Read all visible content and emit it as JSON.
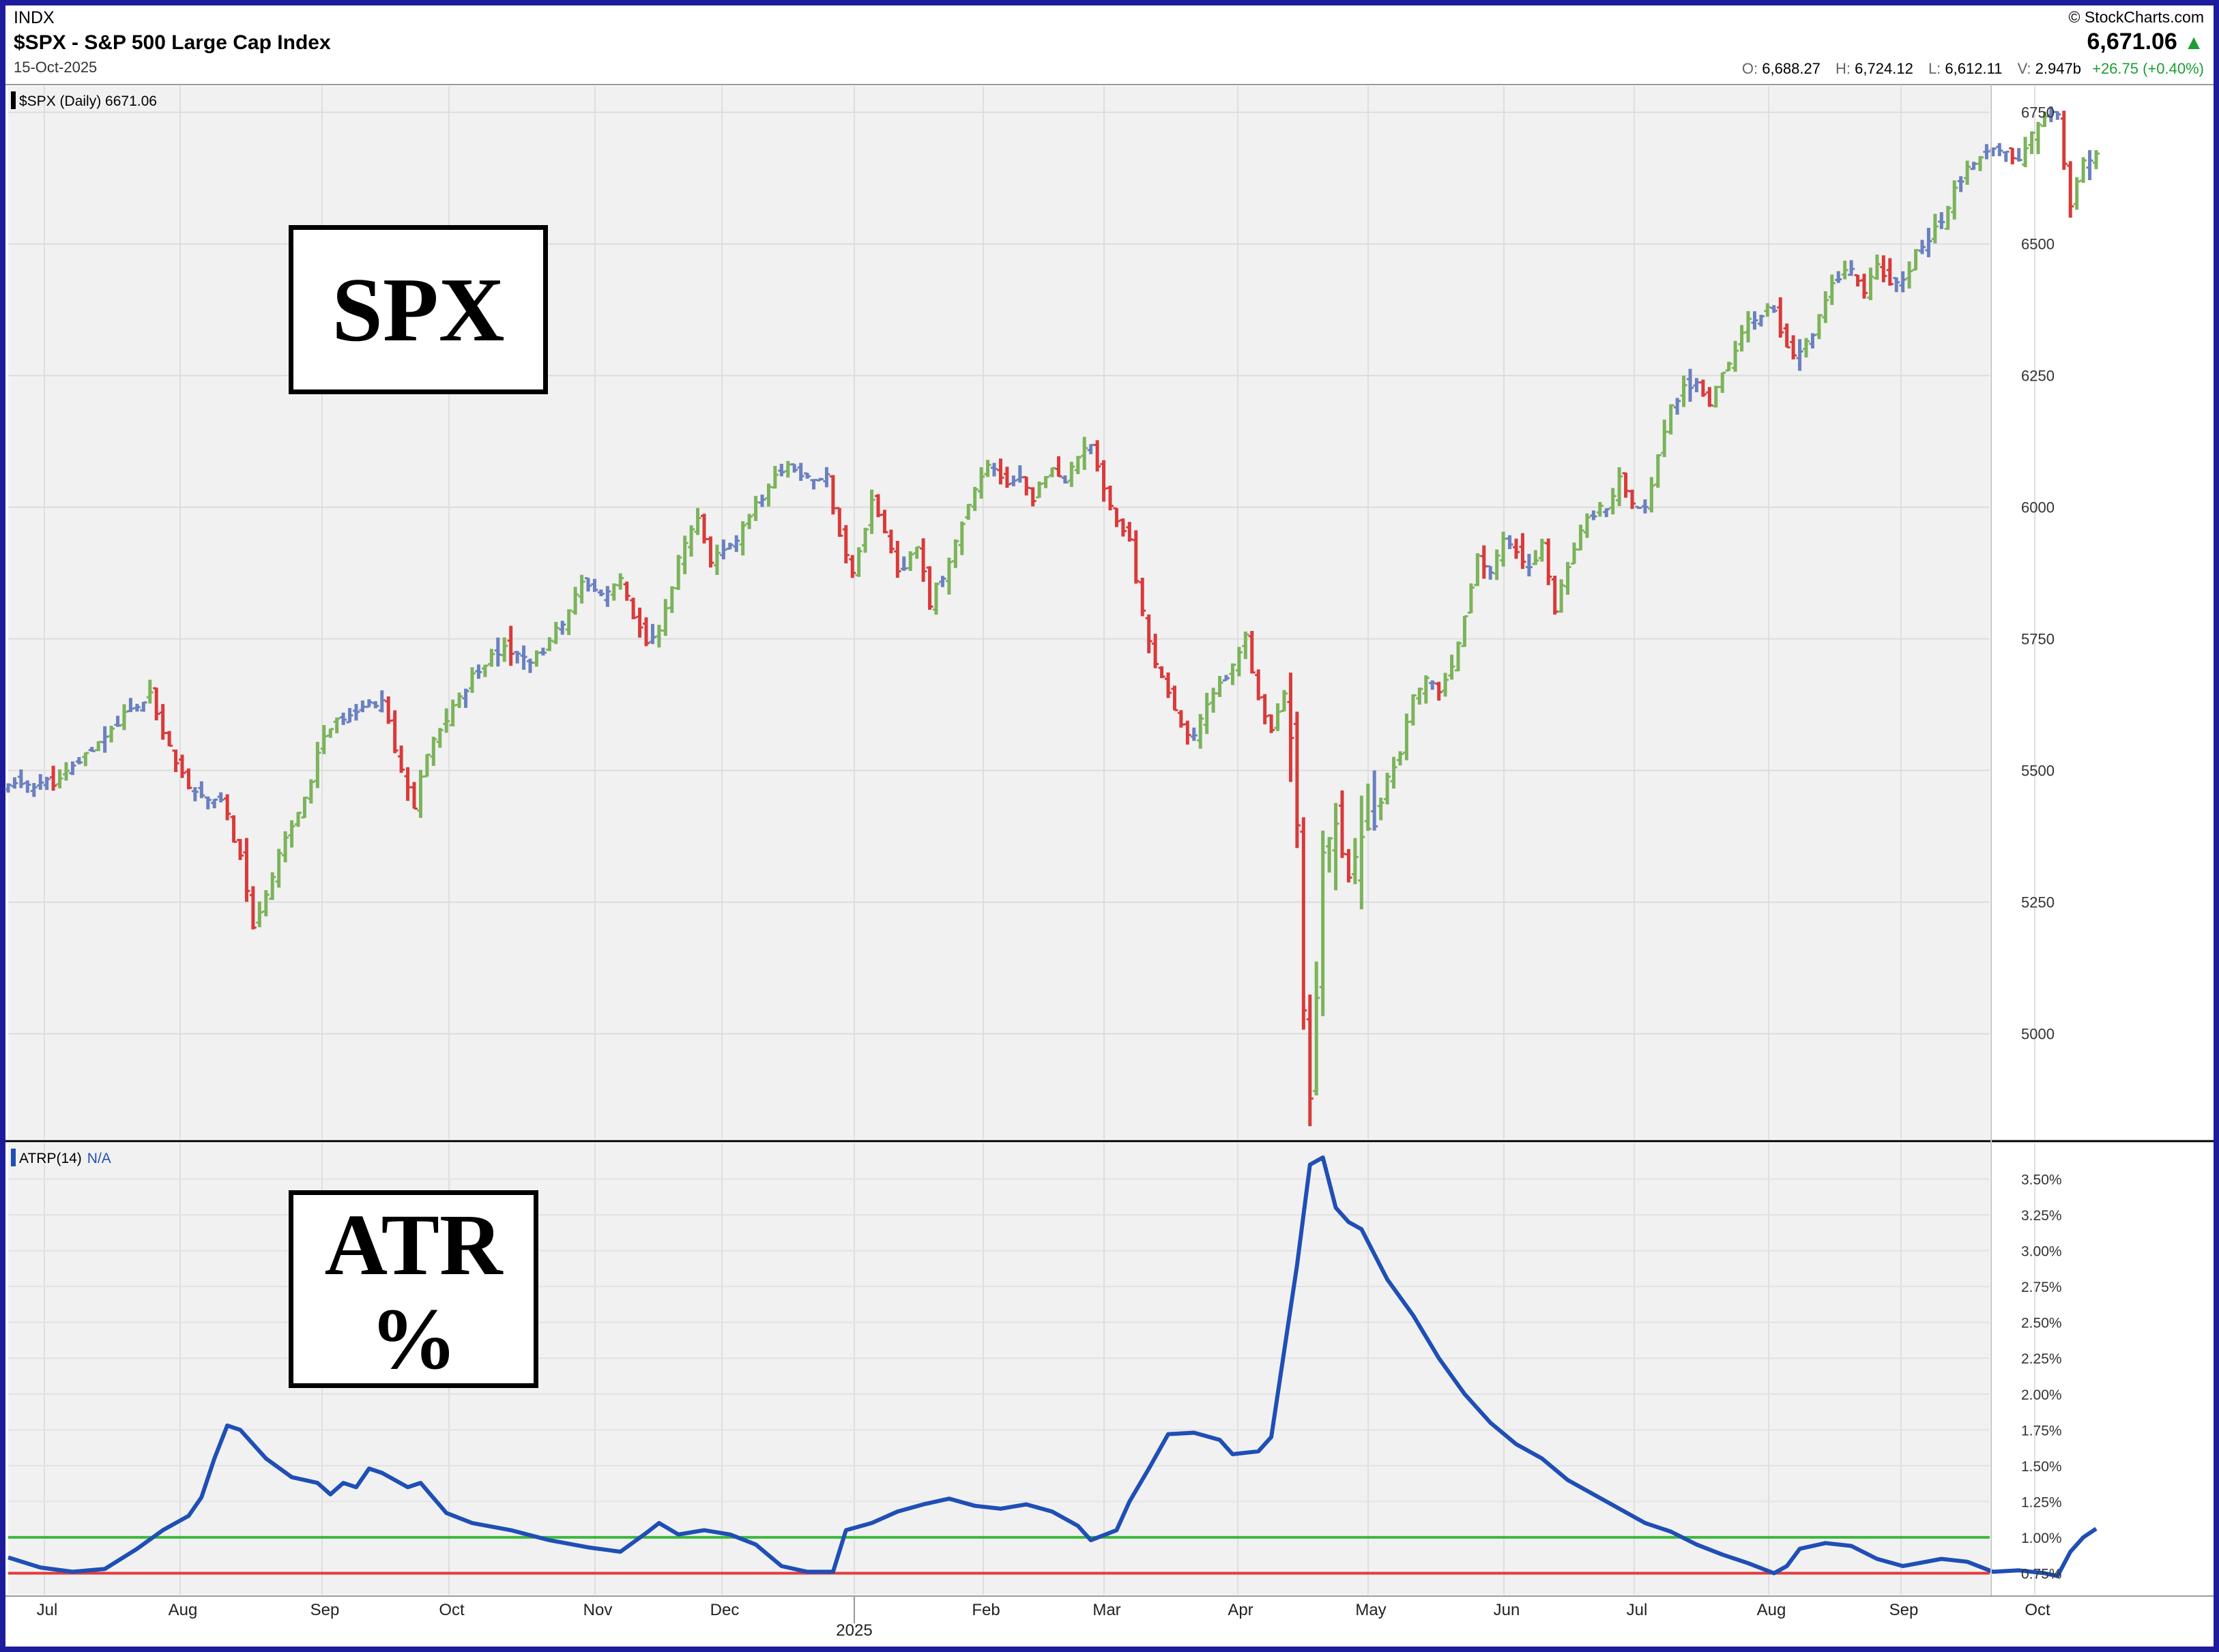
{
  "header": {
    "exchange": "INDX",
    "title": "$SPX - S&P 500 Large Cap Index",
    "date": "15-Oct-2025",
    "copyright": "© StockCharts.com",
    "last_price": "6,671.06",
    "up_arrow": "▲",
    "ohlcv": {
      "open_label": "O:",
      "open": "6,688.27",
      "high_label": "H:",
      "high": "6,724.12",
      "low_label": "L:",
      "low": "6,612.11",
      "vol_label": "V:",
      "vol": "2.947b",
      "change": "+26.75 (+0.40%)"
    }
  },
  "colors": {
    "frame": "#1c1c9c",
    "up": "#7cb35b",
    "down": "#d93a3a",
    "neutral": "#6a80bf",
    "atr_line": "#1f4fb5",
    "level_high": "#3cb93c",
    "level_low": "#e33b3b",
    "plot_bg": "#f1f1f1"
  },
  "overlays": {
    "price_box": "SPX",
    "atr_box_line1": "ATR",
    "atr_box_line2": "%"
  },
  "chart_data": [
    {
      "type": "ohlc",
      "panel": "price",
      "legend": "$SPX (Daily) 6671.06",
      "ylim": [
        4800,
        6800
      ],
      "y_ticks": [
        "5000",
        "5250",
        "5500",
        "5750",
        "6000",
        "6250",
        "6500",
        "6750"
      ],
      "x_ticks": [
        "Jul",
        "Aug",
        "Sep",
        "Oct",
        "Nov",
        "Dec",
        "2025",
        "Feb",
        "Mar",
        "Apr",
        "May",
        "Jun",
        "Jul",
        "Aug",
        "Sep",
        "Oct"
      ],
      "close_path": [
        [
          0,
          5470
        ],
        [
          8,
          5480
        ],
        [
          14,
          5555
        ],
        [
          18,
          5605
        ],
        [
          22,
          5640
        ],
        [
          25,
          5550
        ],
        [
          28,
          5460
        ],
        [
          31,
          5440
        ],
        [
          33,
          5450
        ],
        [
          36,
          5330
        ],
        [
          38,
          5210
        ],
        [
          40,
          5260
        ],
        [
          42,
          5350
        ],
        [
          46,
          5440
        ],
        [
          49,
          5570
        ],
        [
          54,
          5620
        ],
        [
          58,
          5635
        ],
        [
          61,
          5500
        ],
        [
          63,
          5430
        ],
        [
          65,
          5530
        ],
        [
          69,
          5620
        ],
        [
          73,
          5695
        ],
        [
          77,
          5740
        ],
        [
          80,
          5710
        ],
        [
          83,
          5720
        ],
        [
          86,
          5785
        ],
        [
          89,
          5850
        ],
        [
          92,
          5835
        ],
        [
          95,
          5860
        ],
        [
          97,
          5790
        ],
        [
          99,
          5740
        ],
        [
          101,
          5760
        ],
        [
          104,
          5900
        ],
        [
          107,
          5975
        ],
        [
          109,
          5900
        ],
        [
          112,
          5920
        ],
        [
          115,
          5985
        ],
        [
          118,
          6040
        ],
        [
          121,
          6085
        ],
        [
          124,
          6050
        ],
        [
          127,
          6060
        ],
        [
          129,
          5950
        ],
        [
          131,
          5875
        ],
        [
          134,
          6010
        ],
        [
          136,
          5960
        ],
        [
          138,
          5870
        ],
        [
          141,
          5920
        ],
        [
          143,
          5820
        ],
        [
          146,
          5900
        ],
        [
          149,
          6000
        ],
        [
          152,
          6080
        ],
        [
          155,
          6040
        ],
        [
          157,
          6060
        ],
        [
          159,
          6020
        ],
        [
          162,
          6075
        ],
        [
          164,
          6050
        ],
        [
          166,
          6090
        ],
        [
          168,
          6120
        ],
        [
          170,
          6040
        ],
        [
          172,
          5980
        ],
        [
          174,
          5930
        ],
        [
          176,
          5800
        ],
        [
          178,
          5700
        ],
        [
          180,
          5640
        ],
        [
          182,
          5590
        ],
        [
          184,
          5560
        ],
        [
          186,
          5620
        ],
        [
          188,
          5660
        ],
        [
          190,
          5700
        ],
        [
          192,
          5760
        ],
        [
          194,
          5630
        ],
        [
          196,
          5580
        ],
        [
          198,
          5650
        ],
        [
          199,
          5560
        ],
        [
          200,
          5400
        ],
        [
          201,
          5050
        ],
        [
          202,
          4870
        ],
        [
          203,
          5060
        ],
        [
          204,
          5350
        ],
        [
          206,
          5400
        ],
        [
          208,
          5290
        ],
        [
          210,
          5370
        ],
        [
          212,
          5400
        ],
        [
          214,
          5480
        ],
        [
          216,
          5530
        ],
        [
          218,
          5650
        ],
        [
          220,
          5670
        ],
        [
          222,
          5650
        ],
        [
          224,
          5690
        ],
        [
          226,
          5800
        ],
        [
          228,
          5900
        ],
        [
          230,
          5880
        ],
        [
          232,
          5940
        ],
        [
          234,
          5910
        ],
        [
          236,
          5880
        ],
        [
          238,
          5930
        ],
        [
          240,
          5800
        ],
        [
          242,
          5890
        ],
        [
          244,
          5960
        ],
        [
          246,
          5990
        ],
        [
          248,
          6000
        ],
        [
          250,
          6050
        ],
        [
          252,
          6000
        ],
        [
          254,
          6000
        ],
        [
          256,
          6100
        ],
        [
          258,
          6190
        ],
        [
          260,
          6230
        ],
        [
          262,
          6240
        ],
        [
          264,
          6200
        ],
        [
          266,
          6260
        ],
        [
          268,
          6300
        ],
        [
          270,
          6350
        ],
        [
          272,
          6370
        ],
        [
          274,
          6380
        ],
        [
          276,
          6300
        ],
        [
          278,
          6290
        ],
        [
          280,
          6330
        ],
        [
          282,
          6400
        ],
        [
          284,
          6440
        ],
        [
          286,
          6450
        ],
        [
          288,
          6400
        ],
        [
          290,
          6460
        ],
        [
          292,
          6420
        ],
        [
          294,
          6430
        ],
        [
          296,
          6480
        ],
        [
          298,
          6510
        ],
        [
          300,
          6550
        ],
        [
          302,
          6600
        ],
        [
          304,
          6640
        ],
        [
          306,
          6660
        ],
        [
          308,
          6690
        ],
        [
          310,
          6680
        ],
        [
          312,
          6660
        ],
        [
          314,
          6720
        ],
        [
          316,
          6750
        ],
        [
          318,
          6740
        ],
        [
          320,
          6570
        ],
        [
          322,
          6650
        ],
        [
          324,
          6671
        ]
      ]
    },
    {
      "type": "line",
      "panel": "indicator",
      "legend_name": "ATRP(14)",
      "legend_value": "N/A",
      "ylim": [
        0.6,
        3.75
      ],
      "y_ticks": [
        "0.75%",
        "1.00%",
        "1.25%",
        "1.50%",
        "1.75%",
        "2.00%",
        "2.25%",
        "2.50%",
        "2.75%",
        "3.00%",
        "3.25%",
        "3.50%"
      ],
      "horizontal_levels": [
        1.0,
        0.75
      ],
      "points": [
        [
          0,
          0.86
        ],
        [
          5,
          0.79
        ],
        [
          10,
          0.76
        ],
        [
          15,
          0.78
        ],
        [
          20,
          0.92
        ],
        [
          24,
          1.05
        ],
        [
          28,
          1.15
        ],
        [
          30,
          1.28
        ],
        [
          32,
          1.55
        ],
        [
          34,
          1.78
        ],
        [
          36,
          1.75
        ],
        [
          40,
          1.55
        ],
        [
          44,
          1.42
        ],
        [
          48,
          1.38
        ],
        [
          50,
          1.3
        ],
        [
          52,
          1.38
        ],
        [
          54,
          1.35
        ],
        [
          56,
          1.48
        ],
        [
          58,
          1.45
        ],
        [
          62,
          1.35
        ],
        [
          64,
          1.38
        ],
        [
          68,
          1.17
        ],
        [
          72,
          1.1
        ],
        [
          78,
          1.05
        ],
        [
          84,
          0.98
        ],
        [
          90,
          0.93
        ],
        [
          95,
          0.9
        ],
        [
          99,
          1.03
        ],
        [
          101,
          1.1
        ],
        [
          104,
          1.02
        ],
        [
          108,
          1.05
        ],
        [
          112,
          1.02
        ],
        [
          116,
          0.95
        ],
        [
          120,
          0.8
        ],
        [
          124,
          0.76
        ],
        [
          128,
          0.76
        ],
        [
          130,
          1.05
        ],
        [
          134,
          1.1
        ],
        [
          138,
          1.18
        ],
        [
          142,
          1.23
        ],
        [
          146,
          1.27
        ],
        [
          150,
          1.22
        ],
        [
          154,
          1.2
        ],
        [
          158,
          1.23
        ],
        [
          162,
          1.18
        ],
        [
          166,
          1.08
        ],
        [
          168,
          0.98
        ],
        [
          172,
          1.05
        ],
        [
          174,
          1.25
        ],
        [
          177,
          1.48
        ],
        [
          180,
          1.72
        ],
        [
          184,
          1.73
        ],
        [
          188,
          1.68
        ],
        [
          190,
          1.58
        ],
        [
          194,
          1.6
        ],
        [
          196,
          1.7
        ],
        [
          198,
          2.3
        ],
        [
          200,
          2.9
        ],
        [
          202,
          3.6
        ],
        [
          204,
          3.65
        ],
        [
          206,
          3.3
        ],
        [
          208,
          3.2
        ],
        [
          210,
          3.15
        ],
        [
          214,
          2.8
        ],
        [
          218,
          2.55
        ],
        [
          222,
          2.25
        ],
        [
          226,
          2.0
        ],
        [
          230,
          1.8
        ],
        [
          234,
          1.65
        ],
        [
          238,
          1.55
        ],
        [
          242,
          1.4
        ],
        [
          246,
          1.3
        ],
        [
          250,
          1.2
        ],
        [
          254,
          1.1
        ],
        [
          258,
          1.04
        ],
        [
          262,
          0.95
        ],
        [
          266,
          0.88
        ],
        [
          270,
          0.82
        ],
        [
          274,
          0.75
        ],
        [
          276,
          0.8
        ],
        [
          278,
          0.92
        ],
        [
          282,
          0.96
        ],
        [
          286,
          0.94
        ],
        [
          290,
          0.85
        ],
        [
          294,
          0.8
        ],
        [
          300,
          0.85
        ],
        [
          304,
          0.83
        ],
        [
          308,
          0.76
        ],
        [
          312,
          0.77
        ],
        [
          316,
          0.75
        ],
        [
          318,
          0.73
        ],
        [
          320,
          0.9
        ],
        [
          322,
          1.0
        ],
        [
          324,
          1.06
        ]
      ]
    }
  ]
}
